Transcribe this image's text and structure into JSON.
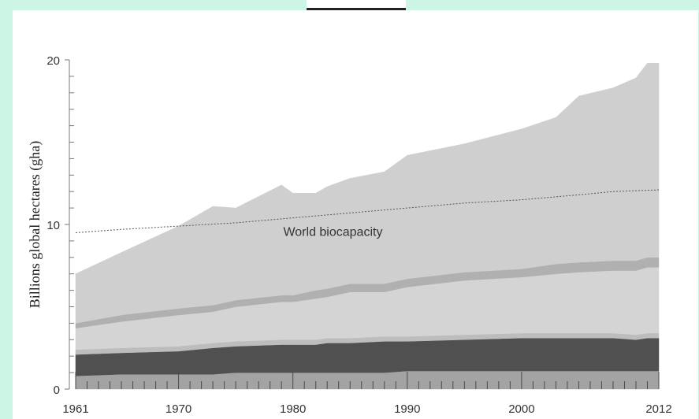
{
  "chart_data": {
    "type": "area",
    "ylabel": "Billions global hectares (gha)",
    "xlabel": "",
    "xlim": [
      1961,
      2012
    ],
    "ylim": [
      0,
      20
    ],
    "x_ticks": [
      "1961",
      "1970",
      "1980",
      "1990",
      "2000",
      "2012"
    ],
    "y_ticks": [
      "0",
      "10",
      "20"
    ],
    "x": [
      1961,
      1965,
      1970,
      1973,
      1975,
      1979,
      1980,
      1982,
      1983,
      1985,
      1988,
      1990,
      1995,
      2000,
      2003,
      2005,
      2008,
      2010,
      2011,
      2012
    ],
    "series": [
      {
        "color": "#a3a3a3",
        "values": [
          0.8,
          0.9,
          0.9,
          0.9,
          1.0,
          1.0,
          1.0,
          1.0,
          1.0,
          1.0,
          1.0,
          1.1,
          1.1,
          1.1,
          1.1,
          1.1,
          1.1,
          1.1,
          1.1,
          1.1
        ]
      },
      {
        "color": "#505050",
        "values": [
          1.3,
          1.3,
          1.4,
          1.6,
          1.6,
          1.7,
          1.7,
          1.7,
          1.8,
          1.8,
          1.9,
          1.8,
          1.9,
          2.0,
          2.0,
          2.0,
          2.0,
          1.9,
          2.0,
          2.0
        ]
      },
      {
        "color": "#bdbdbd",
        "values": [
          0.3,
          0.3,
          0.3,
          0.3,
          0.3,
          0.3,
          0.3,
          0.3,
          0.3,
          0.3,
          0.3,
          0.3,
          0.3,
          0.3,
          0.3,
          0.3,
          0.3,
          0.3,
          0.3,
          0.3
        ]
      },
      {
        "color": "#d4d4d4",
        "values": [
          1.3,
          1.6,
          1.9,
          1.9,
          2.1,
          2.3,
          2.3,
          2.5,
          2.5,
          2.8,
          2.7,
          3.0,
          3.3,
          3.4,
          3.6,
          3.7,
          3.8,
          3.9,
          4.0,
          4.0
        ]
      },
      {
        "color": "#b0b0b0",
        "values": [
          0.3,
          0.4,
          0.4,
          0.4,
          0.4,
          0.4,
          0.4,
          0.5,
          0.5,
          0.5,
          0.5,
          0.5,
          0.5,
          0.5,
          0.6,
          0.6,
          0.6,
          0.6,
          0.6,
          0.6
        ]
      },
      {
        "color": "#cfcfcf",
        "values": [
          3.0,
          3.8,
          5.0,
          6.0,
          5.6,
          6.7,
          6.2,
          5.9,
          6.2,
          6.4,
          6.8,
          7.5,
          7.8,
          8.5,
          8.9,
          10.1,
          10.5,
          11.1,
          11.8,
          11.8
        ]
      }
    ],
    "biocapacity": {
      "label": "World biocapacity",
      "x": [
        1961,
        1965,
        1970,
        1975,
        1980,
        1985,
        1990,
        1995,
        2000,
        2005,
        2008,
        2012
      ],
      "values": [
        9.5,
        9.7,
        9.9,
        10.1,
        10.4,
        10.7,
        11.0,
        11.3,
        11.5,
        11.8,
        12.0,
        12.1
      ]
    }
  }
}
